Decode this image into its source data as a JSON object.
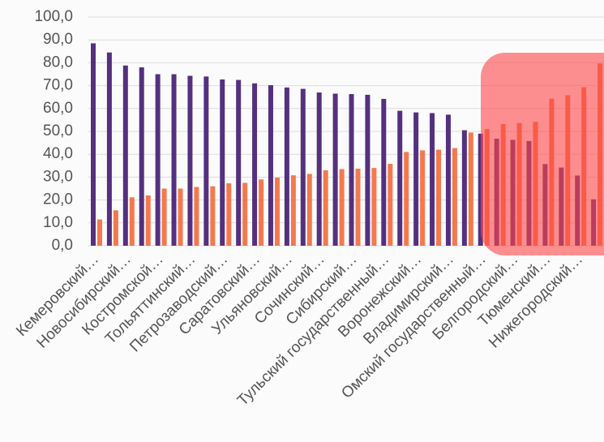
{
  "chart_data": {
    "type": "bar",
    "categories": [
      "Кемеровский…",
      null,
      "Новосибирский…",
      null,
      "Костромской…",
      null,
      "Тольяттинский…",
      null,
      "Петрозаводский…",
      null,
      "Саратовский…",
      null,
      "Ульяновский…",
      null,
      "Сочинский…",
      null,
      "Сибирский…",
      null,
      "Тульский государственный…",
      null,
      "Воронежский…",
      null,
      "Владимирский…",
      null,
      "Омский государственный…",
      null,
      "Белгородский…",
      null,
      "Тюменский…",
      null,
      "Нижегородский…",
      null
    ],
    "series": [
      {
        "color": "#55307f",
        "values": [
          88.5,
          84.5,
          78.8,
          78.0,
          75.0,
          75.0,
          74.3,
          74.0,
          72.7,
          72.5,
          71.0,
          70.2,
          69.2,
          68.6,
          67.0,
          66.5,
          66.3,
          66.0,
          64.2,
          59.0,
          58.3,
          58.0,
          57.3,
          50.5,
          49.0,
          46.8,
          46.3,
          45.8,
          35.7,
          34.2,
          30.7,
          20.3
        ]
      },
      {
        "color": "#f4794d",
        "values": [
          11.5,
          15.5,
          21.2,
          22.0,
          25.0,
          25.0,
          25.7,
          26.0,
          27.3,
          27.5,
          29.0,
          29.8,
          30.8,
          31.4,
          33.0,
          33.5,
          33.7,
          34.0,
          35.8,
          41.0,
          41.7,
          42.0,
          42.7,
          49.5,
          51.0,
          53.2,
          53.7,
          54.2,
          64.3,
          65.8,
          69.3,
          79.7
        ]
      }
    ],
    "ylim": [
      0,
      100
    ],
    "yticks": [
      {
        "value": 0,
        "label": "0,0"
      },
      {
        "value": 10,
        "label": "10,0"
      },
      {
        "value": 20,
        "label": "20,0"
      },
      {
        "value": 30,
        "label": "30,0"
      },
      {
        "value": 40,
        "label": "40,0"
      },
      {
        "value": 50,
        "label": "50,0"
      },
      {
        "value": 60,
        "label": "60,0"
      },
      {
        "value": 70,
        "label": "70,0"
      },
      {
        "value": 80,
        "label": "80,0"
      },
      {
        "value": 90,
        "label": "90,0"
      },
      {
        "value": 100,
        "label": "100,0"
      }
    ],
    "grid": true
  }
}
